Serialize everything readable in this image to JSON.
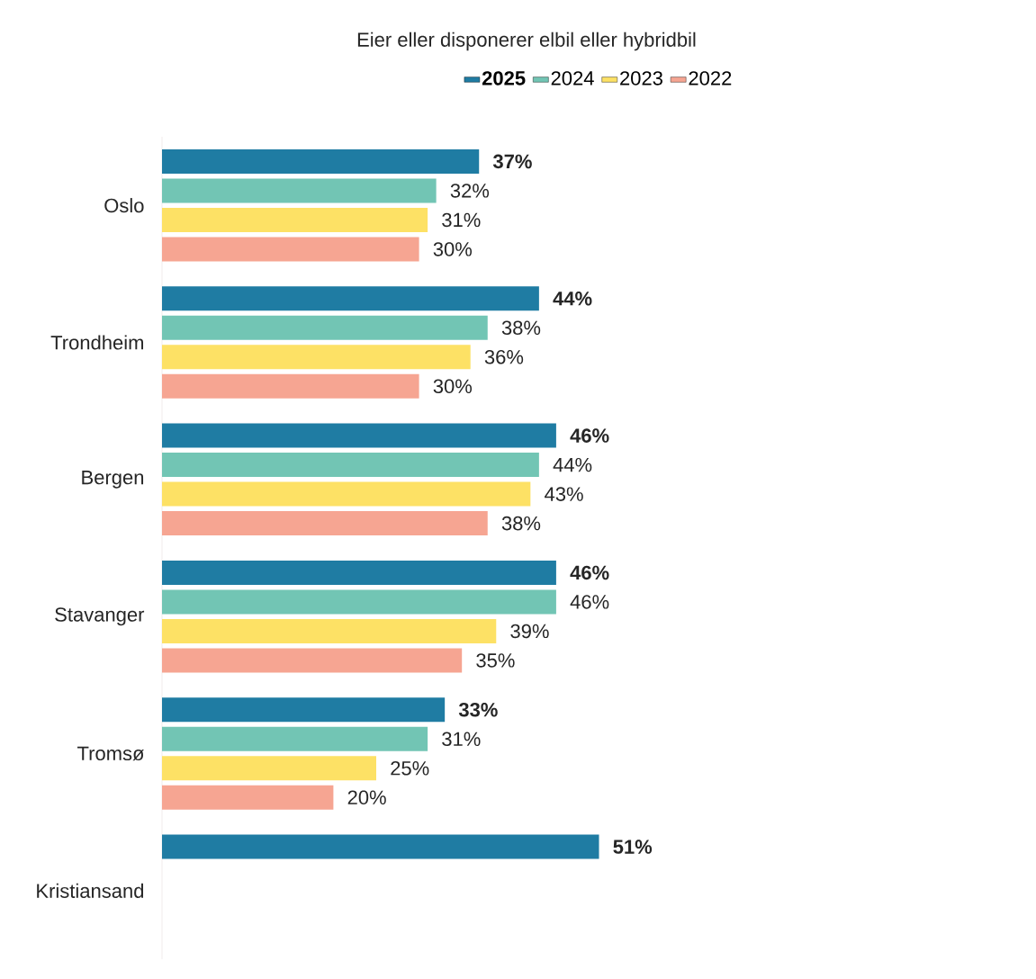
{
  "chart_data": {
    "type": "bar",
    "orientation": "horizontal",
    "title": "Eier eller disponerer elbil eller hybridbil",
    "categories": [
      "Oslo",
      "Trondheim",
      "Bergen",
      "Stavanger",
      "Tromsø",
      "Kristiansand"
    ],
    "series": [
      {
        "name": "2025",
        "color": "#1f7ca3",
        "values": [
          37,
          44,
          46,
          46,
          33,
          51
        ],
        "value_labels": [
          "37%",
          "44%",
          "46%",
          "46%",
          "33%",
          "51%"
        ]
      },
      {
        "name": "2024",
        "color": "#72c5b4",
        "values": [
          32,
          38,
          44,
          46,
          31,
          null
        ],
        "value_labels": [
          "32%",
          "38%",
          "44%",
          "46%",
          "31%",
          null
        ]
      },
      {
        "name": "2023",
        "color": "#fde165",
        "values": [
          31,
          36,
          43,
          39,
          25,
          null
        ],
        "value_labels": [
          "31%",
          "36%",
          "43%",
          "39%",
          "25%",
          null
        ]
      },
      {
        "name": "2022",
        "color": "#f6a592",
        "values": [
          30,
          30,
          38,
          35,
          20,
          null
        ],
        "value_labels": [
          "30%",
          "30%",
          "38%",
          "35%",
          "20%",
          null
        ]
      }
    ],
    "legend": "top"
  }
}
